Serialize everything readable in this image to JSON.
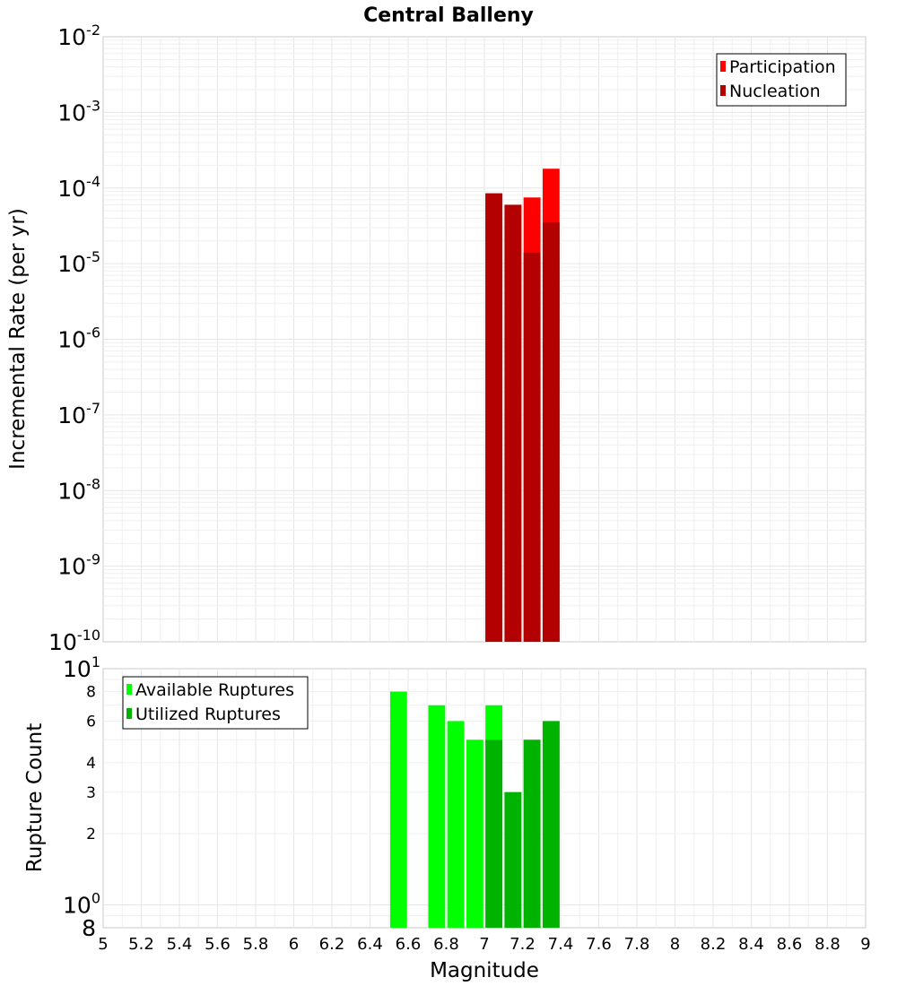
{
  "title": "Central Balleny",
  "chart_data": [
    {
      "type": "bar",
      "panel": "top",
      "ylabel": "Incremental Rate (per yr)",
      "yscale": "log",
      "ylim": [
        1e-10,
        0.01
      ],
      "xlim": [
        5,
        9
      ],
      "bar_width": 0.1,
      "y_ticks": [
        {
          "base": "10",
          "exp": "-2",
          "value": 0.01
        },
        {
          "base": "10",
          "exp": "-3",
          "value": 0.001
        },
        {
          "base": "10",
          "exp": "-4",
          "value": 0.0001
        },
        {
          "base": "10",
          "exp": "-5",
          "value": 1e-05
        },
        {
          "base": "10",
          "exp": "-6",
          "value": 1e-06
        },
        {
          "base": "10",
          "exp": "-7",
          "value": 1e-07
        },
        {
          "base": "10",
          "exp": "-8",
          "value": 1e-08
        },
        {
          "base": "10",
          "exp": "-9",
          "value": 1e-09
        },
        {
          "base": "10",
          "exp": "-10",
          "value": 1e-10
        }
      ],
      "legend": {
        "placement": "top-right",
        "entries": [
          "Participation",
          "Nucleation"
        ]
      },
      "series": [
        {
          "name": "Participation",
          "color": "#ff0000",
          "x": [
            7.05,
            7.15,
            7.25,
            7.35
          ],
          "values": [
            8.5e-05,
            6e-05,
            7.5e-05,
            0.00018
          ]
        },
        {
          "name": "Nucleation",
          "color": "#b30000",
          "x": [
            7.05,
            7.15,
            7.25,
            7.35
          ],
          "values": [
            8.5e-05,
            6e-05,
            1.4e-05,
            3.5e-05
          ]
        }
      ]
    },
    {
      "type": "bar",
      "panel": "bottom",
      "ylabel": "Rupture Count",
      "xlabel": "Magnitude",
      "yscale": "log",
      "ylim": [
        0.8,
        10
      ],
      "xlim": [
        5,
        9
      ],
      "bar_width": 0.1,
      "y_ticks": [
        {
          "base": "10",
          "exp": "1",
          "value": 10
        },
        {
          "base": "8",
          "exp": "",
          "value": 8
        },
        {
          "base": "6",
          "exp": "",
          "value": 6
        },
        {
          "base": "4",
          "exp": "",
          "value": 4
        },
        {
          "base": "3",
          "exp": "",
          "value": 3
        },
        {
          "base": "2",
          "exp": "",
          "value": 2
        },
        {
          "base": "10",
          "exp": "0",
          "value": 1
        },
        {
          "base": "8",
          "exp": "",
          "value": 0.8
        }
      ],
      "x_ticks": [
        "5",
        "5.2",
        "5.4",
        "5.6",
        "5.8",
        "6",
        "6.2",
        "6.4",
        "6.6",
        "6.8",
        "7",
        "7.2",
        "7.4",
        "7.6",
        "7.8",
        "8",
        "8.2",
        "8.4",
        "8.6",
        "8.8",
        "9"
      ],
      "legend": {
        "placement": "top-left",
        "entries": [
          "Available Ruptures",
          "Utilized Ruptures"
        ]
      },
      "series": [
        {
          "name": "Available Ruptures",
          "color": "#00ff00",
          "x": [
            6.55,
            6.75,
            6.85,
            6.95,
            7.05,
            7.15,
            7.25,
            7.35
          ],
          "values": [
            8,
            7,
            6,
            5,
            7,
            3,
            5,
            6
          ]
        },
        {
          "name": "Utilized Ruptures",
          "color": "#00b300",
          "x": [
            7.05,
            7.15,
            7.25,
            7.35
          ],
          "values": [
            5,
            3,
            5,
            6
          ]
        }
      ]
    }
  ]
}
